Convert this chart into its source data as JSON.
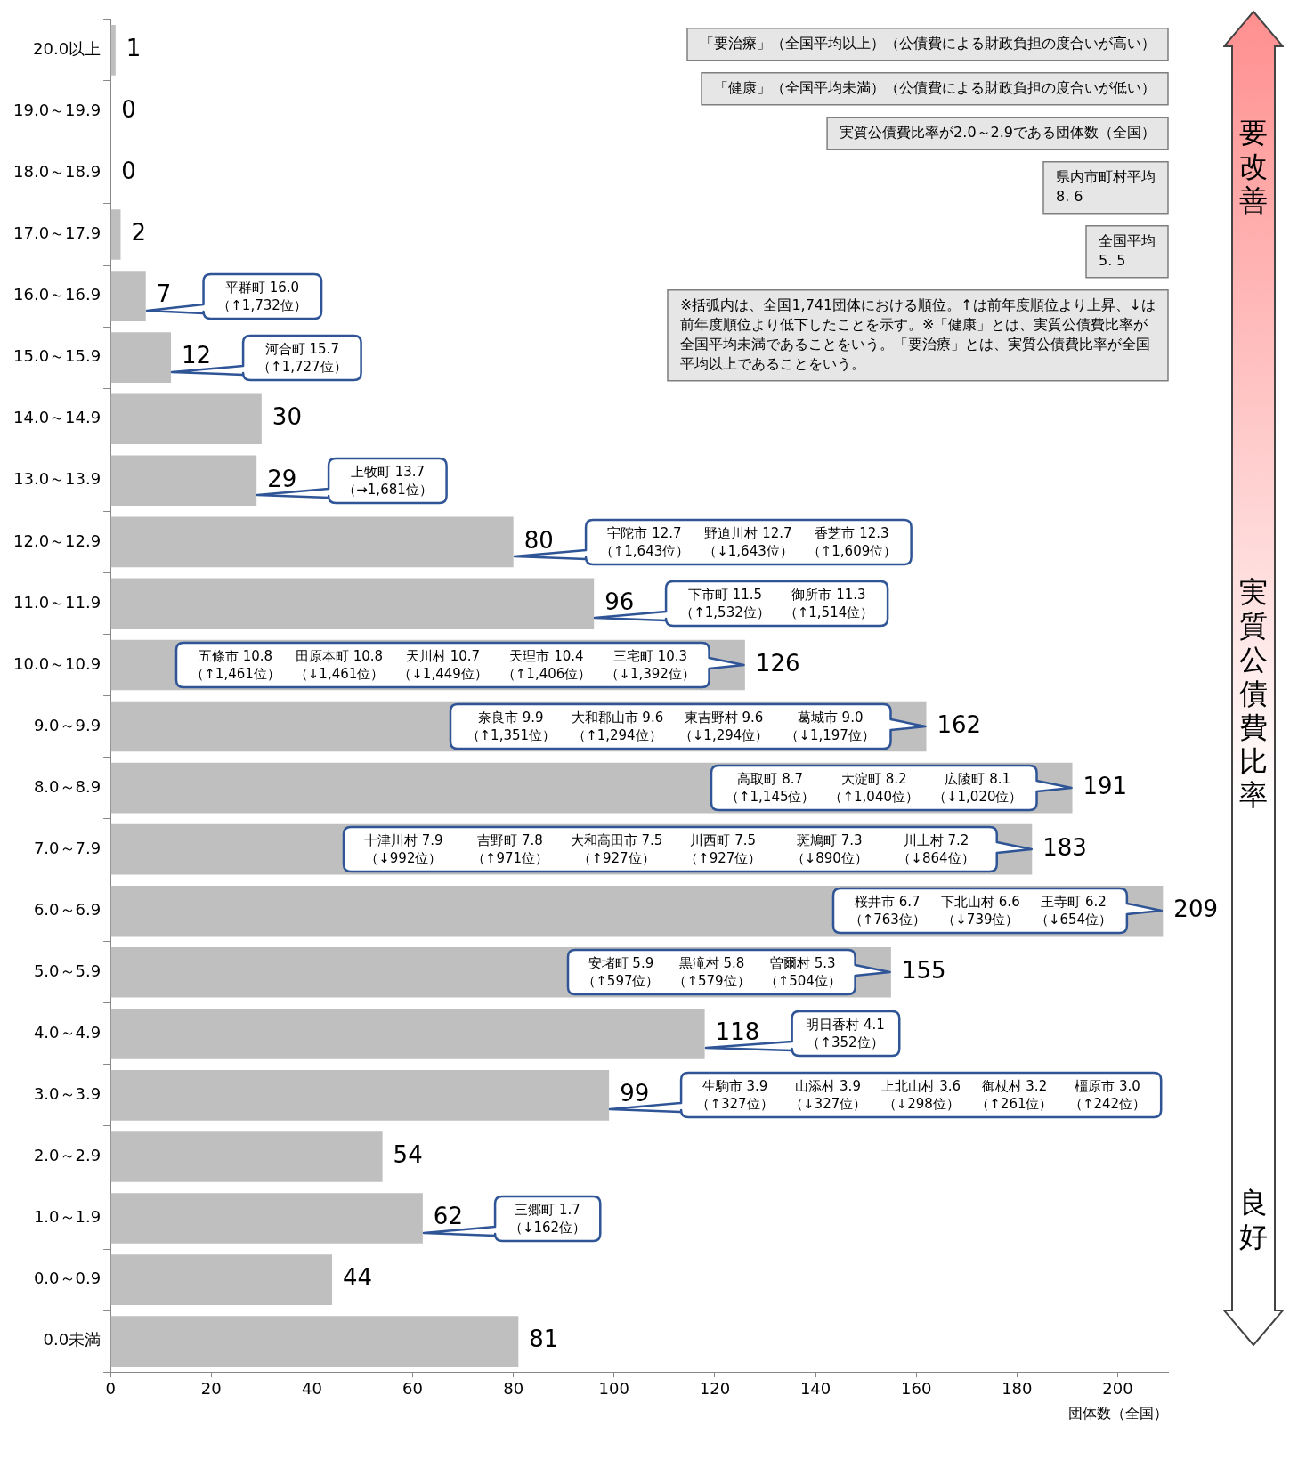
{
  "chart_data": {
    "type": "bar",
    "orientation": "horizontal",
    "categories": [
      "20.0以上",
      "19.0～19.9",
      "18.0～18.9",
      "17.0～17.9",
      "16.0～16.9",
      "15.0～15.9",
      "14.0～14.9",
      "13.0～13.9",
      "12.0～12.9",
      "11.0～11.9",
      "10.0～10.9",
      "9.0～9.9",
      "8.0～8.9",
      "7.0～7.9",
      "6.0～6.9",
      "5.0～5.9",
      "4.0～4.9",
      "3.0～3.9",
      "2.0～2.9",
      "1.0～1.9",
      "0.0～0.9",
      "0.0未満"
    ],
    "values": [
      1,
      0,
      0,
      2,
      7,
      12,
      30,
      29,
      80,
      96,
      126,
      162,
      191,
      183,
      209,
      155,
      118,
      99,
      54,
      62,
      44,
      81
    ],
    "color": "#bfbfbf",
    "xlim": [
      0,
      210
    ],
    "xticks": [
      0,
      20,
      40,
      60,
      80,
      100,
      120,
      140,
      160,
      180,
      200
    ],
    "xlabel": "団体数（全国）",
    "ylabel": "実質公債費比率",
    "data_labels": true,
    "annotations": [
      "要改善",
      "良好",
      "「要治療」（全国平均以上）（公債費による財政負担の度合いが高い）",
      "「健康」（全国平均未満）（公債費による財政負担の度合いが低い）",
      "実質公債費比率が2.0～2.9である団体数（全国）",
      "県内市町村平均\n8. 6",
      "全国平均\n5. 5",
      "※括弧内は、全国1,741団体における順位。↑は前年度順位より上昇、↓は前年度順位より低下したことを示す。※「健康」とは、実質公債費比率が全国平均未満であることをいう。「要治療」とは、実質公債費比率が全国平均以上であることをいう。",
      "平群町 16.0\n（↑1,732位）",
      "河合町 15.7\n（↑1,727位）",
      "上牧町 13.7\n（→1,681位）",
      "宇陀市 12.7\n（↑1,643位）",
      "野迫川村 12.7\n（↓1,643位）",
      "香芝市 12.3\n（↑1,609位）",
      "下市町 11.5\n（↑1,532位）",
      "御所市 11.3\n（↑1,514位）",
      "五條市 10.8\n（↑1,461位）",
      "田原本町 10.8\n（↓1,461位）",
      "天川村 10.7\n（↓1,449位）",
      "天理市 10.4\n（↑1,406位）",
      "三宅町 10.3\n（↓1,392位）",
      "奈良市 9.9\n（↑1,351位）",
      "大和郡山市 9.6\n（↑1,294位）",
      "東吉野村 9.6\n（↓1,294位）",
      "葛城市 9.0\n（↓1,197位）",
      "高取町 8.7\n（↑1,145位）",
      "大淀町 8.2\n（↑1,040位）",
      "広陵町 8.1\n（↓1,020位）",
      "十津川村 7.9\n（↓992位）",
      "吉野町 7.8\n（↑971位）",
      "大和高田市 7.5\n（↑927位）",
      "川西町 7.5\n（↑927位）",
      "斑鳩町 7.3\n（↓890位）",
      "川上村 7.2\n（↓864位）",
      "桜井市 6.7\n（↑763位）",
      "下北山村 6.6\n（↓739位）",
      "王寺町 6.2\n（↓654位）",
      "安堵町 5.9\n（↑597位）",
      "黒滝村 5.8\n（↑579位）",
      "曽爾村 5.3\n（↑504位）",
      "明日香村 4.1\n（↑352位）",
      "生駒市 3.9\n（↑327位）",
      "山添村 3.9\n（↓327位）",
      "上北山村 3.6\n（↓298位）",
      "御杖村 3.2\n（↑261位）",
      "橿原市 3.0\n（↑242位）",
      "三郷町 1.7\n（↓162位）"
    ]
  }
}
